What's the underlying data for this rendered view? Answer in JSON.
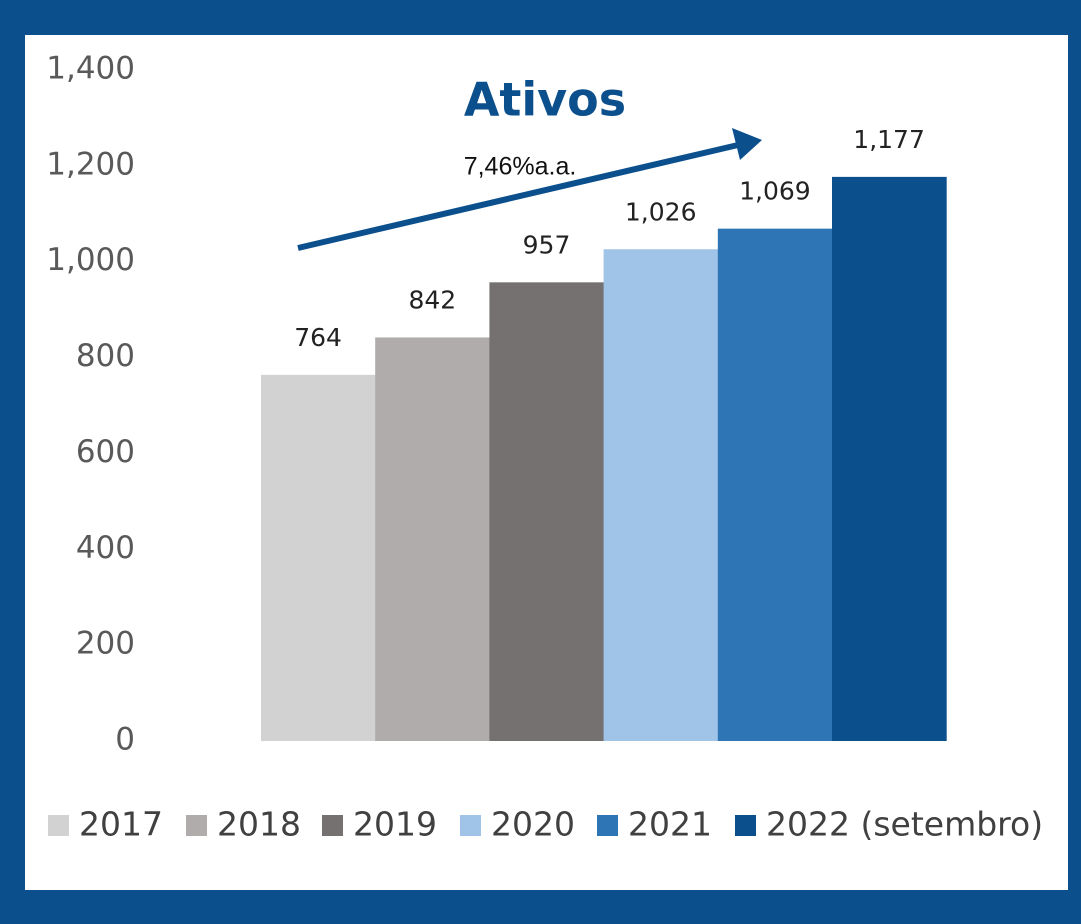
{
  "chart_data": {
    "type": "bar",
    "title": "Ativos",
    "annotation": "7,46%a.a.",
    "ylim": [
      0,
      1400
    ],
    "yticks": [
      0,
      200,
      400,
      600,
      800,
      {
        "value": 1000,
        "label": "1,000"
      },
      {
        "value": 1200,
        "label": "1,200"
      },
      {
        "value": 1400,
        "label": "1,400"
      }
    ],
    "series": [
      {
        "name": "2017",
        "color": "#d3d2d3",
        "values": [
          764
        ]
      },
      {
        "name": "2018",
        "color": "#afacab",
        "values": [
          842
        ]
      },
      {
        "name": "2019",
        "color": "#767171",
        "values": [
          957
        ]
      },
      {
        "name": "2020",
        "color": "#9fc4e7",
        "values": [
          1026
        ],
        "value_labels": [
          "1,026"
        ]
      },
      {
        "name": "2021",
        "color": "#2e75b6",
        "values": [
          1069
        ],
        "value_labels": [
          "1,069"
        ]
      },
      {
        "name": "2022 (setembro)",
        "color": "#0b4f8c",
        "values": [
          1177
        ],
        "value_labels": [
          "1,177"
        ]
      }
    ]
  }
}
